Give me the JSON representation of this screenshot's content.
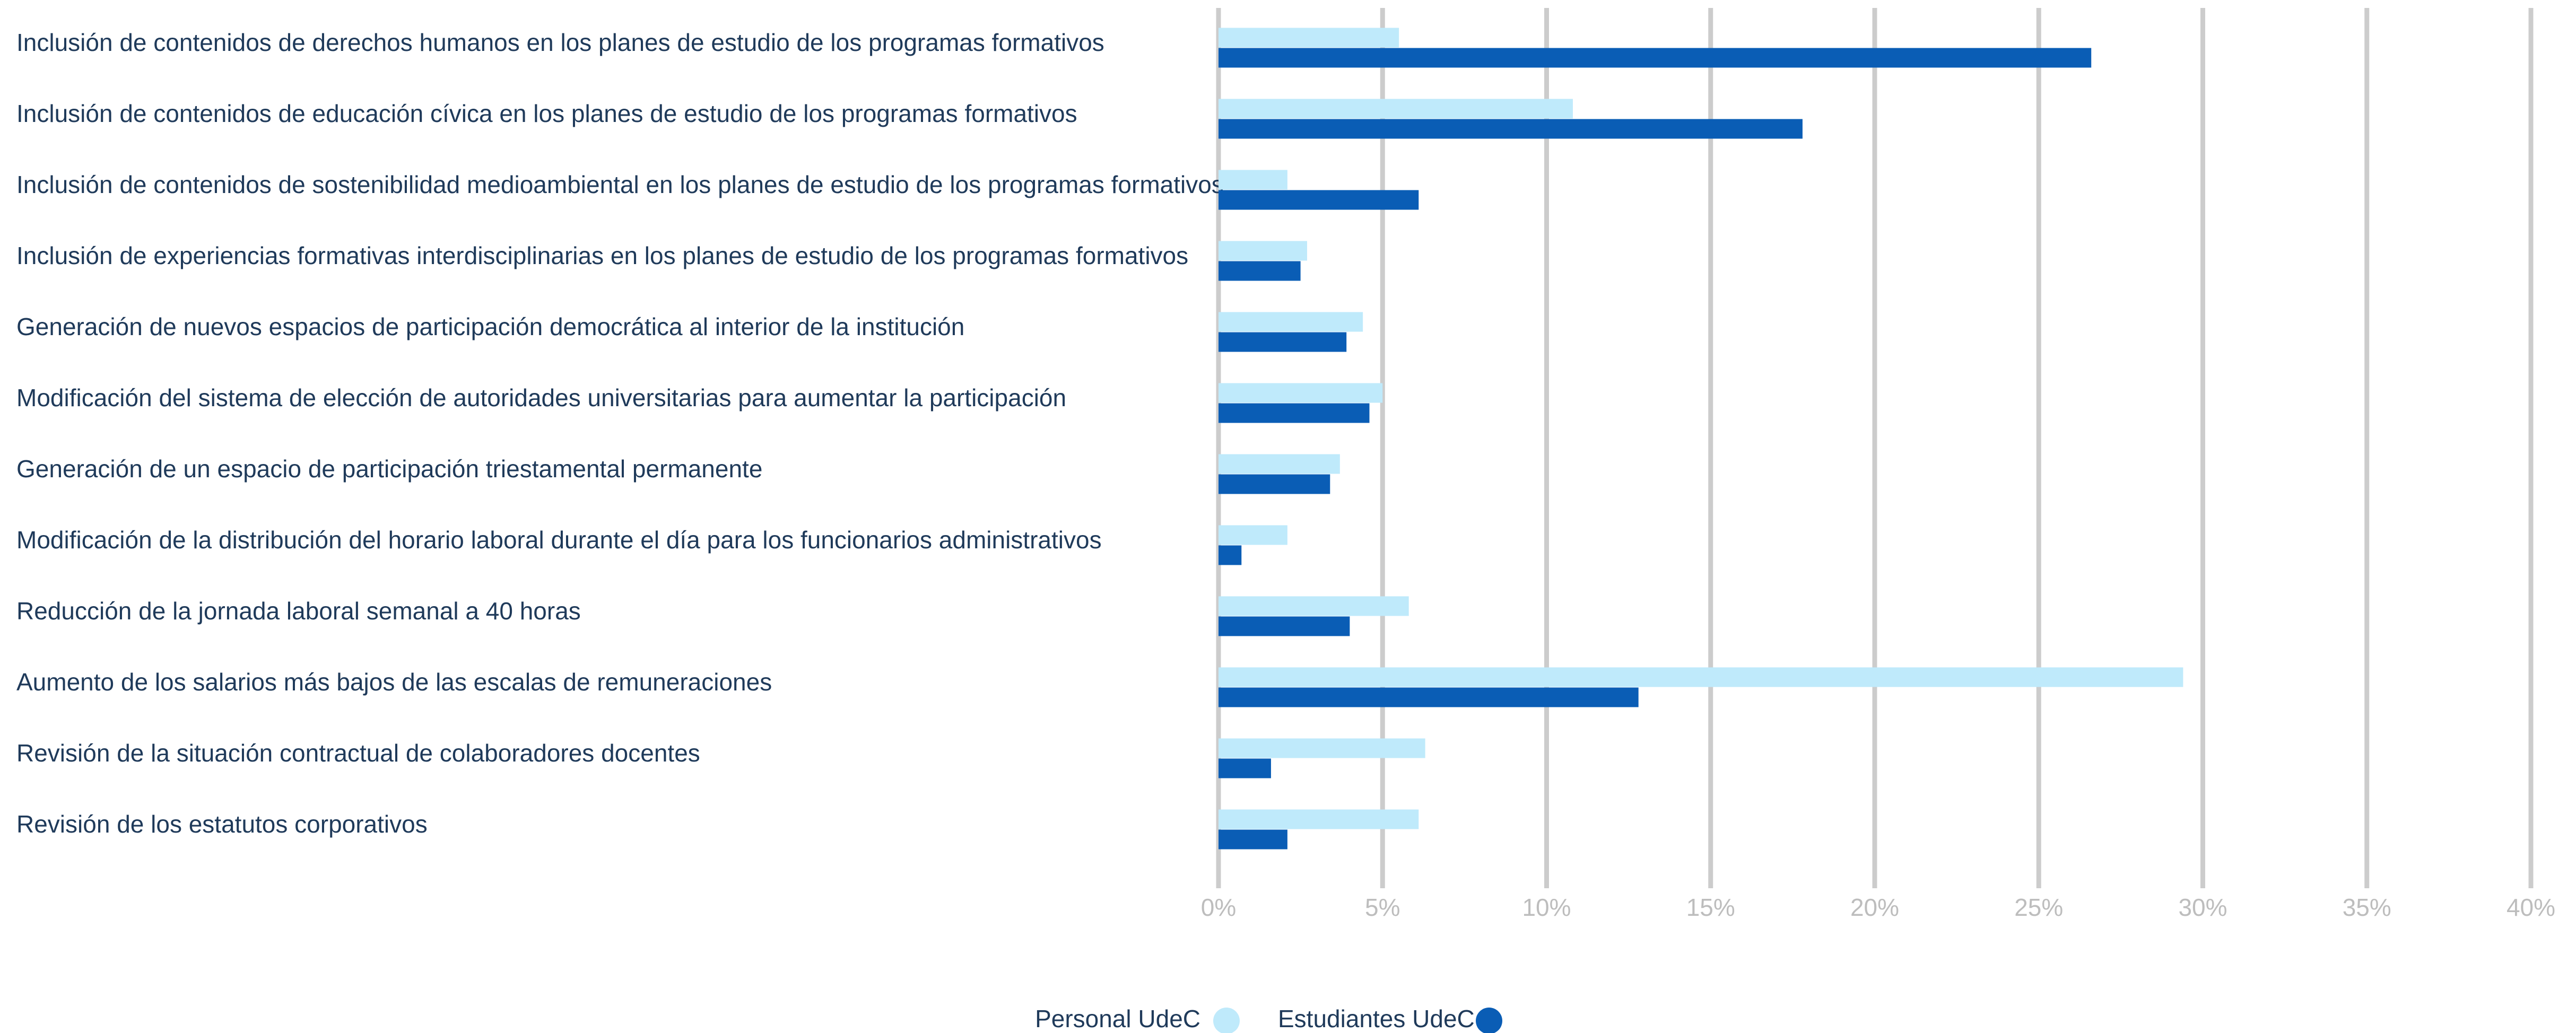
{
  "chart_data": {
    "type": "bar",
    "orientation": "horizontal",
    "categories": [
      "Inclusión de contenidos de derechos humanos en los planes de estudio de los programas formativos",
      "Inclusión de contenidos de educación cívica en los planes de estudio de los programas formativos",
      "Inclusión de contenidos de sostenibilidad medioambiental en los planes de estudio de los programas formativos",
      "Inclusión de experiencias formativas interdisciplinarias en los planes de estudio de los programas formativos",
      "Generación de nuevos espacios de participación democrática al interior de la institución",
      "Modificación del sistema de elección de autoridades universitarias para aumentar la participación",
      "Generación de un espacio de participación triestamental permanente",
      "Modificación de la distribución del horario laboral durante el día para los funcionarios administrativos",
      "Reducción de la jornada laboral semanal a 40 horas",
      "Aumento de los salarios más bajos de las escalas de remuneraciones",
      "Revisión de la situación contractual de colaboradores docentes",
      "Revisión de los estatutos corporativos"
    ],
    "series": [
      {
        "name": "Personal UdeC",
        "color": "#bfeafb",
        "values": [
          5.5,
          10.8,
          2.1,
          2.7,
          4.4,
          5.0,
          3.7,
          2.1,
          5.8,
          29.4,
          6.3,
          6.1
        ]
      },
      {
        "name": "Estudiantes UdeC",
        "color": "#0a5db5",
        "values": [
          26.6,
          17.8,
          6.1,
          2.5,
          3.9,
          4.6,
          3.4,
          0.7,
          4.0,
          12.8,
          1.6,
          2.1
        ]
      }
    ],
    "xlim": [
      0,
      40
    ],
    "xticks": [
      {
        "value": 0,
        "label": "0%"
      },
      {
        "value": 5,
        "label": "5%"
      },
      {
        "value": 10,
        "label": "10%"
      },
      {
        "value": 15,
        "label": "15%"
      },
      {
        "value": 20,
        "label": "20%"
      },
      {
        "value": 25,
        "label": "25%"
      },
      {
        "value": 30,
        "label": "30%"
      },
      {
        "value": 35,
        "label": "35%"
      },
      {
        "value": 40,
        "label": "40%"
      }
    ],
    "grid": true,
    "legend": "bottom"
  }
}
